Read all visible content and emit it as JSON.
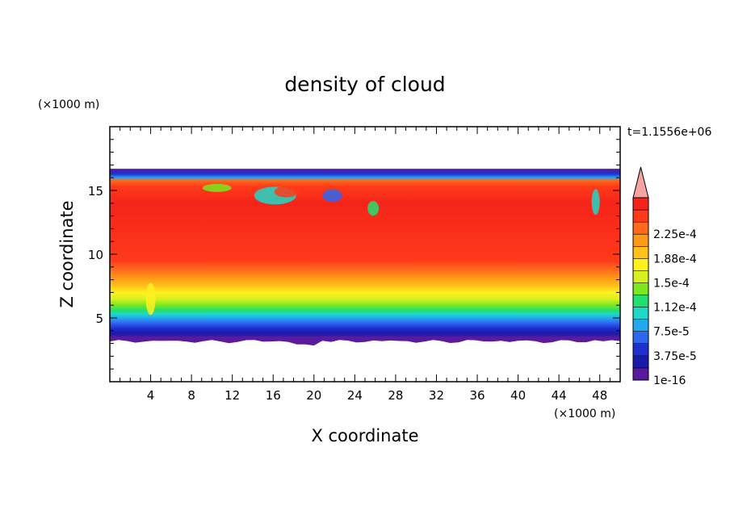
{
  "chart_data": {
    "type": "heatmap",
    "title": "density of cloud",
    "xlabel": "X coordinate",
    "ylabel": "Z coordinate",
    "x_unit_label": "(×1000 m)",
    "y_unit_label": "(×1000 m)",
    "time_label": "t=1.1556e+06",
    "xlim": [
      0,
      50
    ],
    "ylim": [
      0,
      20
    ],
    "x_ticks": [
      4,
      8,
      12,
      16,
      20,
      24,
      28,
      32,
      36,
      40,
      44,
      48
    ],
    "y_ticks": [
      5,
      10,
      15
    ],
    "colorbar": {
      "labels": [
        "1e-16",
        "3.75e-5",
        "7.5e-5",
        "1.12e-4",
        "1.5e-4",
        "1.88e-4",
        "2.25e-4"
      ],
      "colors": [
        "#5a1a9e",
        "#1a1aa8",
        "#1f2fd0",
        "#2f66f0",
        "#23a8f0",
        "#1fd8c8",
        "#22e070",
        "#7be81f",
        "#d8f020",
        "#fff020",
        "#ffc21a",
        "#ff9a18",
        "#ff6a1c",
        "#ff3a1a",
        "#f5241a"
      ],
      "extend_color": "#f4a3a3"
    },
    "vertical_profile": [
      {
        "z": 3.4,
        "color": "#5a1a9e"
      },
      {
        "z": 3.8,
        "color": "#1a1aa8"
      },
      {
        "z": 4.2,
        "color": "#1f2fd0"
      },
      {
        "z": 4.6,
        "color": "#2f66f0"
      },
      {
        "z": 5.0,
        "color": "#23a8f0"
      },
      {
        "z": 5.3,
        "color": "#1fd8c8"
      },
      {
        "z": 5.6,
        "color": "#22e070"
      },
      {
        "z": 6.0,
        "color": "#7be81f"
      },
      {
        "z": 6.5,
        "color": "#d8f020"
      },
      {
        "z": 7.0,
        "color": "#fff020"
      },
      {
        "z": 7.5,
        "color": "#ffc21a"
      },
      {
        "z": 8.1,
        "color": "#ff9a18"
      },
      {
        "z": 8.8,
        "color": "#ff6a1c"
      },
      {
        "z": 9.5,
        "color": "#ff3a1a"
      },
      {
        "z": 14.0,
        "color": "#f5241a"
      },
      {
        "z": 15.3,
        "color": "#ff3a1a"
      },
      {
        "z": 15.8,
        "color": "#ff6a1c"
      },
      {
        "z": 16.0,
        "color": "#23a8f0"
      },
      {
        "z": 16.3,
        "color": "#1f2fd0"
      },
      {
        "z": 16.7,
        "color": "#5a1a9e"
      }
    ]
  }
}
